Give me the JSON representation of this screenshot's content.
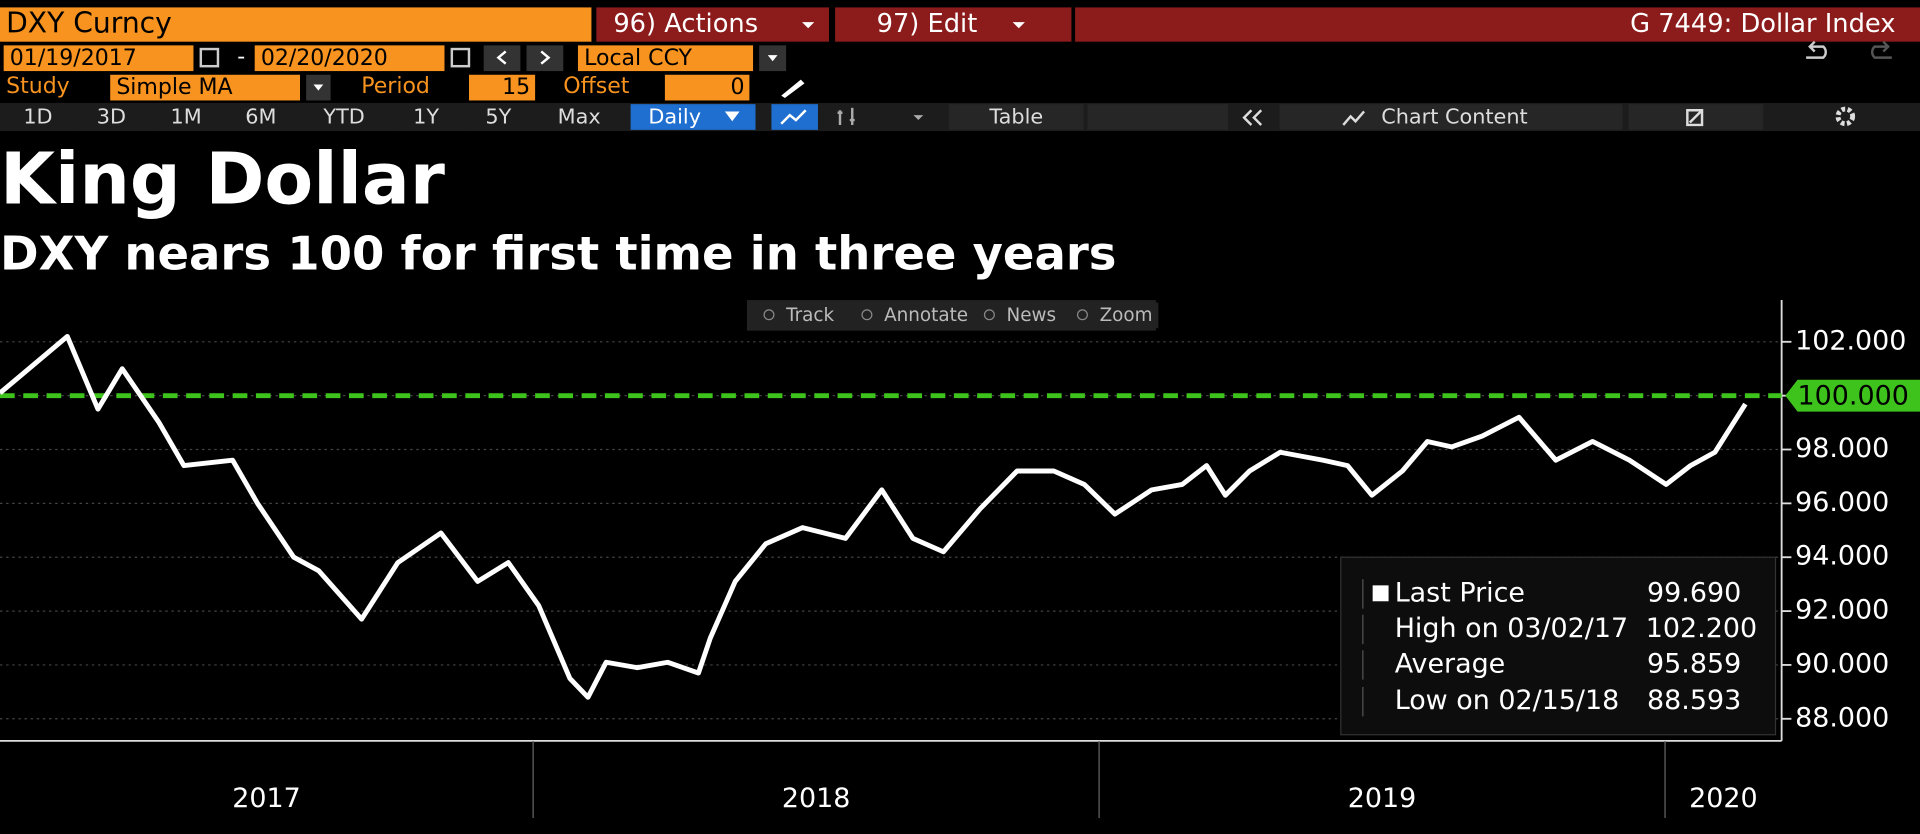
{
  "header": {
    "security": "DXY Curncy",
    "actions": "96) Actions",
    "edit": "97) Edit",
    "page": "G 7449: Dollar Index"
  },
  "controls": {
    "start_date": "01/19/2017",
    "date_sep": "-",
    "end_date": "02/20/2020",
    "currency": "Local CCY",
    "study_label": "Study",
    "study": "Simple MA",
    "period_label": "Period",
    "period": "15",
    "offset_label": "Offset",
    "offset": "0"
  },
  "toolbar": {
    "ranges": [
      "1D",
      "3D",
      "1M",
      "6M",
      "YTD",
      "1Y",
      "5Y",
      "Max"
    ],
    "frequency": "Daily",
    "table": "Table",
    "chart_content": "Chart Content"
  },
  "chart_tools": [
    "Track",
    "Annotate",
    "News",
    "Zoom"
  ],
  "chart_data": {
    "type": "line",
    "title": "King Dollar",
    "subtitle": "DXY nears 100 for first time in three years",
    "x": [
      2017.058,
      2017.177,
      2017.231,
      2017.274,
      2017.339,
      2017.383,
      2017.469,
      2017.513,
      2017.577,
      2017.621,
      2017.697,
      2017.761,
      2017.837,
      2017.902,
      2017.956,
      2018.01,
      2018.065,
      2018.097,
      2018.129,
      2018.184,
      2018.238,
      2018.292,
      2018.313,
      2018.357,
      2018.411,
      2018.476,
      2018.552,
      2018.616,
      2018.671,
      2018.725,
      2018.79,
      2018.855,
      2018.92,
      2018.974,
      2019.028,
      2019.093,
      2019.147,
      2019.19,
      2019.223,
      2019.266,
      2019.32,
      2019.396,
      2019.439,
      2019.482,
      2019.536,
      2019.58,
      2019.623,
      2019.677,
      2019.742,
      2019.807,
      2019.872,
      2019.937,
      2020.002,
      2020.045,
      2020.088,
      2020.142
    ],
    "series": [
      {
        "name": "Last Price",
        "color": "#ffffff",
        "values": [
          100.1,
          102.2,
          99.5,
          101.0,
          99.0,
          97.4,
          97.6,
          96.0,
          94.0,
          93.5,
          91.7,
          93.8,
          94.9,
          93.1,
          93.8,
          92.2,
          89.5,
          88.8,
          90.1,
          89.9,
          90.1,
          89.7,
          91.0,
          93.1,
          94.5,
          95.1,
          94.7,
          96.5,
          94.7,
          94.2,
          95.8,
          97.2,
          97.2,
          96.7,
          95.6,
          96.5,
          96.7,
          97.4,
          96.3,
          97.2,
          97.9,
          97.6,
          97.4,
          96.3,
          97.2,
          98.3,
          98.1,
          98.5,
          99.2,
          97.6,
          98.3,
          97.6,
          96.7,
          97.4,
          97.9,
          99.69
        ]
      }
    ],
    "xlim": [
      2017.058,
      2020.206
    ],
    "xticks": [
      2017,
      2018,
      2019,
      2020
    ],
    "ylim": [
      87.18,
      103.55
    ],
    "yticks": [
      {
        "value": 88,
        "label": "88.000"
      },
      {
        "value": 90,
        "label": "90.000"
      },
      {
        "value": 92,
        "label": "92.000"
      },
      {
        "value": 94,
        "label": "94.000"
      },
      {
        "value": 96,
        "label": "96.000"
      },
      {
        "value": 98,
        "label": "98.000"
      },
      {
        "value": 100,
        "label": "100.000"
      },
      {
        "value": 102,
        "label": "102.000"
      }
    ],
    "grid": true,
    "reference_line": {
      "value": 100,
      "label": "100.000",
      "color": "#3ec21c"
    },
    "stats": [
      {
        "label": "Last Price",
        "value": "99.690"
      },
      {
        "label": "High on 03/02/17",
        "value": "102.200"
      },
      {
        "label": "Average",
        "value": "95.859"
      },
      {
        "label": "Low on 02/15/18",
        "value": "88.593"
      }
    ]
  }
}
